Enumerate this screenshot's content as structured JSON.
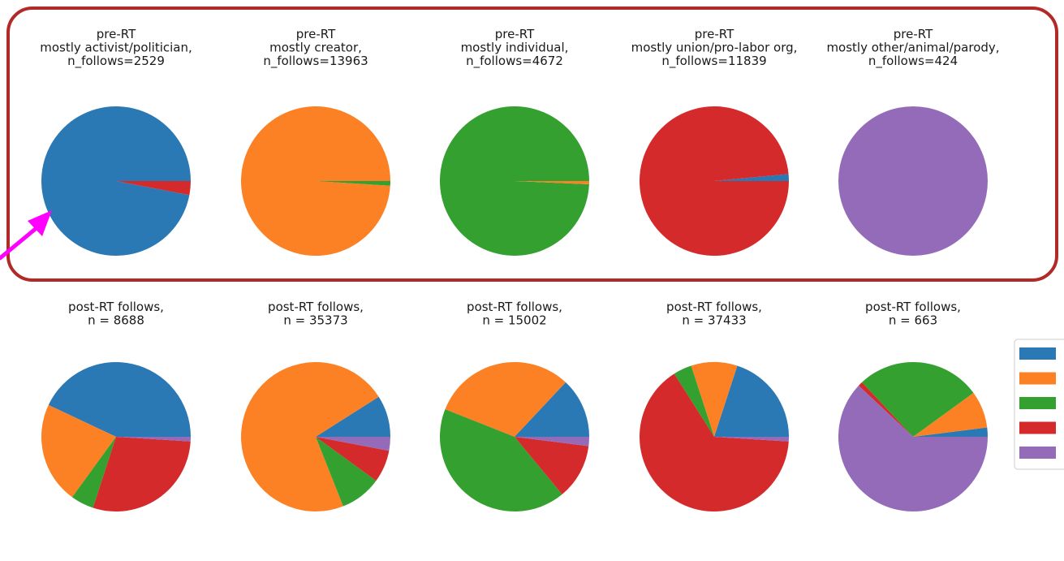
{
  "colors": {
    "blue": "#2a78b4",
    "orange": "#fb8124",
    "green": "#33a02f",
    "red": "#d42a2b",
    "purple": "#946bb9",
    "highlight_box": "#b22a27",
    "arrow": "#ff00ff"
  },
  "chart_data": [
    {
      "type": "pie",
      "row": "pre-RT",
      "title": [
        "pre-RT",
        "mostly activist/politician,",
        "n_follows=2529"
      ],
      "slices": [
        {
          "color": "blue",
          "value": 0.97
        },
        {
          "color": "red",
          "value": 0.03
        }
      ]
    },
    {
      "type": "pie",
      "row": "pre-RT",
      "title": [
        "pre-RT",
        "mostly creator,",
        "n_follows=13963"
      ],
      "slices": [
        {
          "color": "orange",
          "value": 0.99
        },
        {
          "color": "green",
          "value": 0.01
        }
      ]
    },
    {
      "type": "pie",
      "row": "pre-RT",
      "title": [
        "pre-RT",
        "mostly individual,",
        "n_follows=4672"
      ],
      "slices": [
        {
          "color": "green",
          "value": 0.993
        },
        {
          "color": "orange",
          "value": 0.007
        }
      ]
    },
    {
      "type": "pie",
      "row": "pre-RT",
      "title": [
        "pre-RT",
        "mostly union/pro-labor org,",
        "n_follows=11839"
      ],
      "slices": [
        {
          "color": "blue",
          "value": 0.015
        },
        {
          "color": "red",
          "value": 0.985
        }
      ]
    },
    {
      "type": "pie",
      "row": "pre-RT",
      "title": [
        "pre-RT",
        "mostly other/animal/parody,",
        "n_follows=424"
      ],
      "slices": [
        {
          "color": "purple",
          "value": 1.0
        }
      ]
    },
    {
      "type": "pie",
      "row": "post-RT",
      "title": [
        "post-RT follows,",
        "n = 8688"
      ],
      "slices": [
        {
          "color": "blue",
          "value": 0.43
        },
        {
          "color": "orange",
          "value": 0.22
        },
        {
          "color": "green",
          "value": 0.05
        },
        {
          "color": "red",
          "value": 0.29
        },
        {
          "color": "purple",
          "value": 0.01
        }
      ]
    },
    {
      "type": "pie",
      "row": "post-RT",
      "title": [
        "post-RT follows,",
        "n = 35373"
      ],
      "slices": [
        {
          "color": "blue",
          "value": 0.09
        },
        {
          "color": "orange",
          "value": 0.72
        },
        {
          "color": "green",
          "value": 0.09
        },
        {
          "color": "red",
          "value": 0.07
        },
        {
          "color": "purple",
          "value": 0.03
        }
      ]
    },
    {
      "type": "pie",
      "row": "post-RT",
      "title": [
        "post-RT follows,",
        "n = 15002"
      ],
      "slices": [
        {
          "color": "blue",
          "value": 0.13
        },
        {
          "color": "orange",
          "value": 0.31
        },
        {
          "color": "green",
          "value": 0.42
        },
        {
          "color": "red",
          "value": 0.12
        },
        {
          "color": "purple",
          "value": 0.02
        }
      ]
    },
    {
      "type": "pie",
      "row": "post-RT",
      "title": [
        "post-RT follows,",
        "n = 37433"
      ],
      "slices": [
        {
          "color": "blue",
          "value": 0.2
        },
        {
          "color": "orange",
          "value": 0.1
        },
        {
          "color": "green",
          "value": 0.04
        },
        {
          "color": "red",
          "value": 0.65
        },
        {
          "color": "purple",
          "value": 0.01
        }
      ]
    },
    {
      "type": "pie",
      "row": "post-RT",
      "title": [
        "post-RT follows,",
        "n = 663"
      ],
      "slices": [
        {
          "color": "blue",
          "value": 0.02
        },
        {
          "color": "orange",
          "value": 0.08
        },
        {
          "color": "green",
          "value": 0.27
        },
        {
          "color": "red",
          "value": 0.01
        },
        {
          "color": "purple",
          "value": 0.62
        }
      ]
    }
  ],
  "legend": {
    "placement": "right",
    "entries": [
      {
        "color": "blue",
        "label": ""
      },
      {
        "color": "orange",
        "label": ""
      },
      {
        "color": "green",
        "label": ""
      },
      {
        "color": "red",
        "label": ""
      },
      {
        "color": "purple",
        "label": ""
      }
    ]
  }
}
